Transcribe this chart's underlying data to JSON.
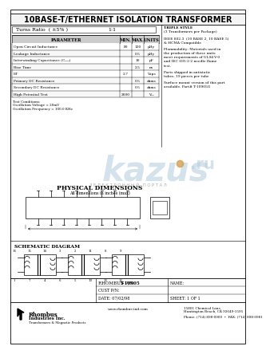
{
  "title": "10BASE-T/ETHERNET ISOLATION TRANSFORMER",
  "turns_ratio_label": "Turns Ratio  ( ±5% )",
  "turns_ratio_value": "1:1",
  "table_headers": [
    "PARAMETER",
    "MIN.",
    "MAX.",
    "UNITS"
  ],
  "table_rows": [
    [
      "Open Circuit Inductance",
      "80",
      "120",
      "μHy"
    ],
    [
      "Leakage Inductance",
      "",
      "0.5",
      "μHy"
    ],
    [
      "Interwinding Capacitance (Cᵤᵤᵤ)",
      "",
      "10",
      "pF"
    ],
    [
      "Rise Time",
      "",
      "2.5",
      "ns"
    ],
    [
      "ET",
      "2.7",
      "",
      "Vxμs"
    ],
    [
      "Primary DC Resistance",
      "",
      "0.5",
      "ohms"
    ],
    [
      "Secondary DC Resistance",
      "",
      "0.5",
      "ohms"
    ],
    [
      "High Potential Test",
      "2000",
      "",
      "Vᵣᵢᵢ"
    ]
  ],
  "test_conditions_lines": [
    "Test Conditions:",
    "Oscillation Voltage = 20mV",
    "Oscillation Frequency = 100.0 KHz"
  ],
  "right_col_lines": [
    [
      "TRIPLE STYLE",
      true
    ],
    [
      "(3 Transformers per Package)",
      false
    ],
    [
      "",
      false
    ],
    [
      "IEEE 802.3  (10 BASE 2, 10 BASE 5)",
      false
    ],
    [
      "& HCMA Compatible",
      false
    ],
    [
      "",
      false
    ],
    [
      "Flammability: Materials used in",
      false
    ],
    [
      "the production of these units",
      false
    ],
    [
      "meet requirements of UL94-V-0",
      false
    ],
    [
      "and IEC 695-2-2 needle flame",
      false
    ],
    [
      "test.",
      false
    ],
    [
      "",
      false
    ],
    [
      "Parts shipped in antistatic",
      false
    ],
    [
      "tubes. 19 pieces per tube",
      false
    ],
    [
      "",
      false
    ],
    [
      "Surface mount version of this part",
      false
    ],
    [
      "available. Part# T-10905G",
      false
    ]
  ],
  "phys_dim_title": "PHYSICAL DIMENSIONS",
  "phys_dim_sub": "All dimensions in inches (max)",
  "schematic_label": "SCHEMATIC DIAGRAM",
  "rhombus_pn_label": "RHOMBUS P/N:",
  "rhombus_pn_value": "T-10905",
  "cust_pn": "CUST P/N:",
  "name_label": "NAME:",
  "date_label": "DATE: 07/02/98",
  "sheet_label": "SHEET: 1 OF 1",
  "website": "www.rhombus-ind.com",
  "address": "15801 Chemical Lane,\nHuntington Beach, CA 92649-1595\nPhone: (714) 898-0900  •  FAX: (714) 898-0981",
  "bg_color": "#ffffff",
  "border_color": "#000000",
  "kazus_color": "#b8cfe0",
  "dot_color": "#d4a050"
}
